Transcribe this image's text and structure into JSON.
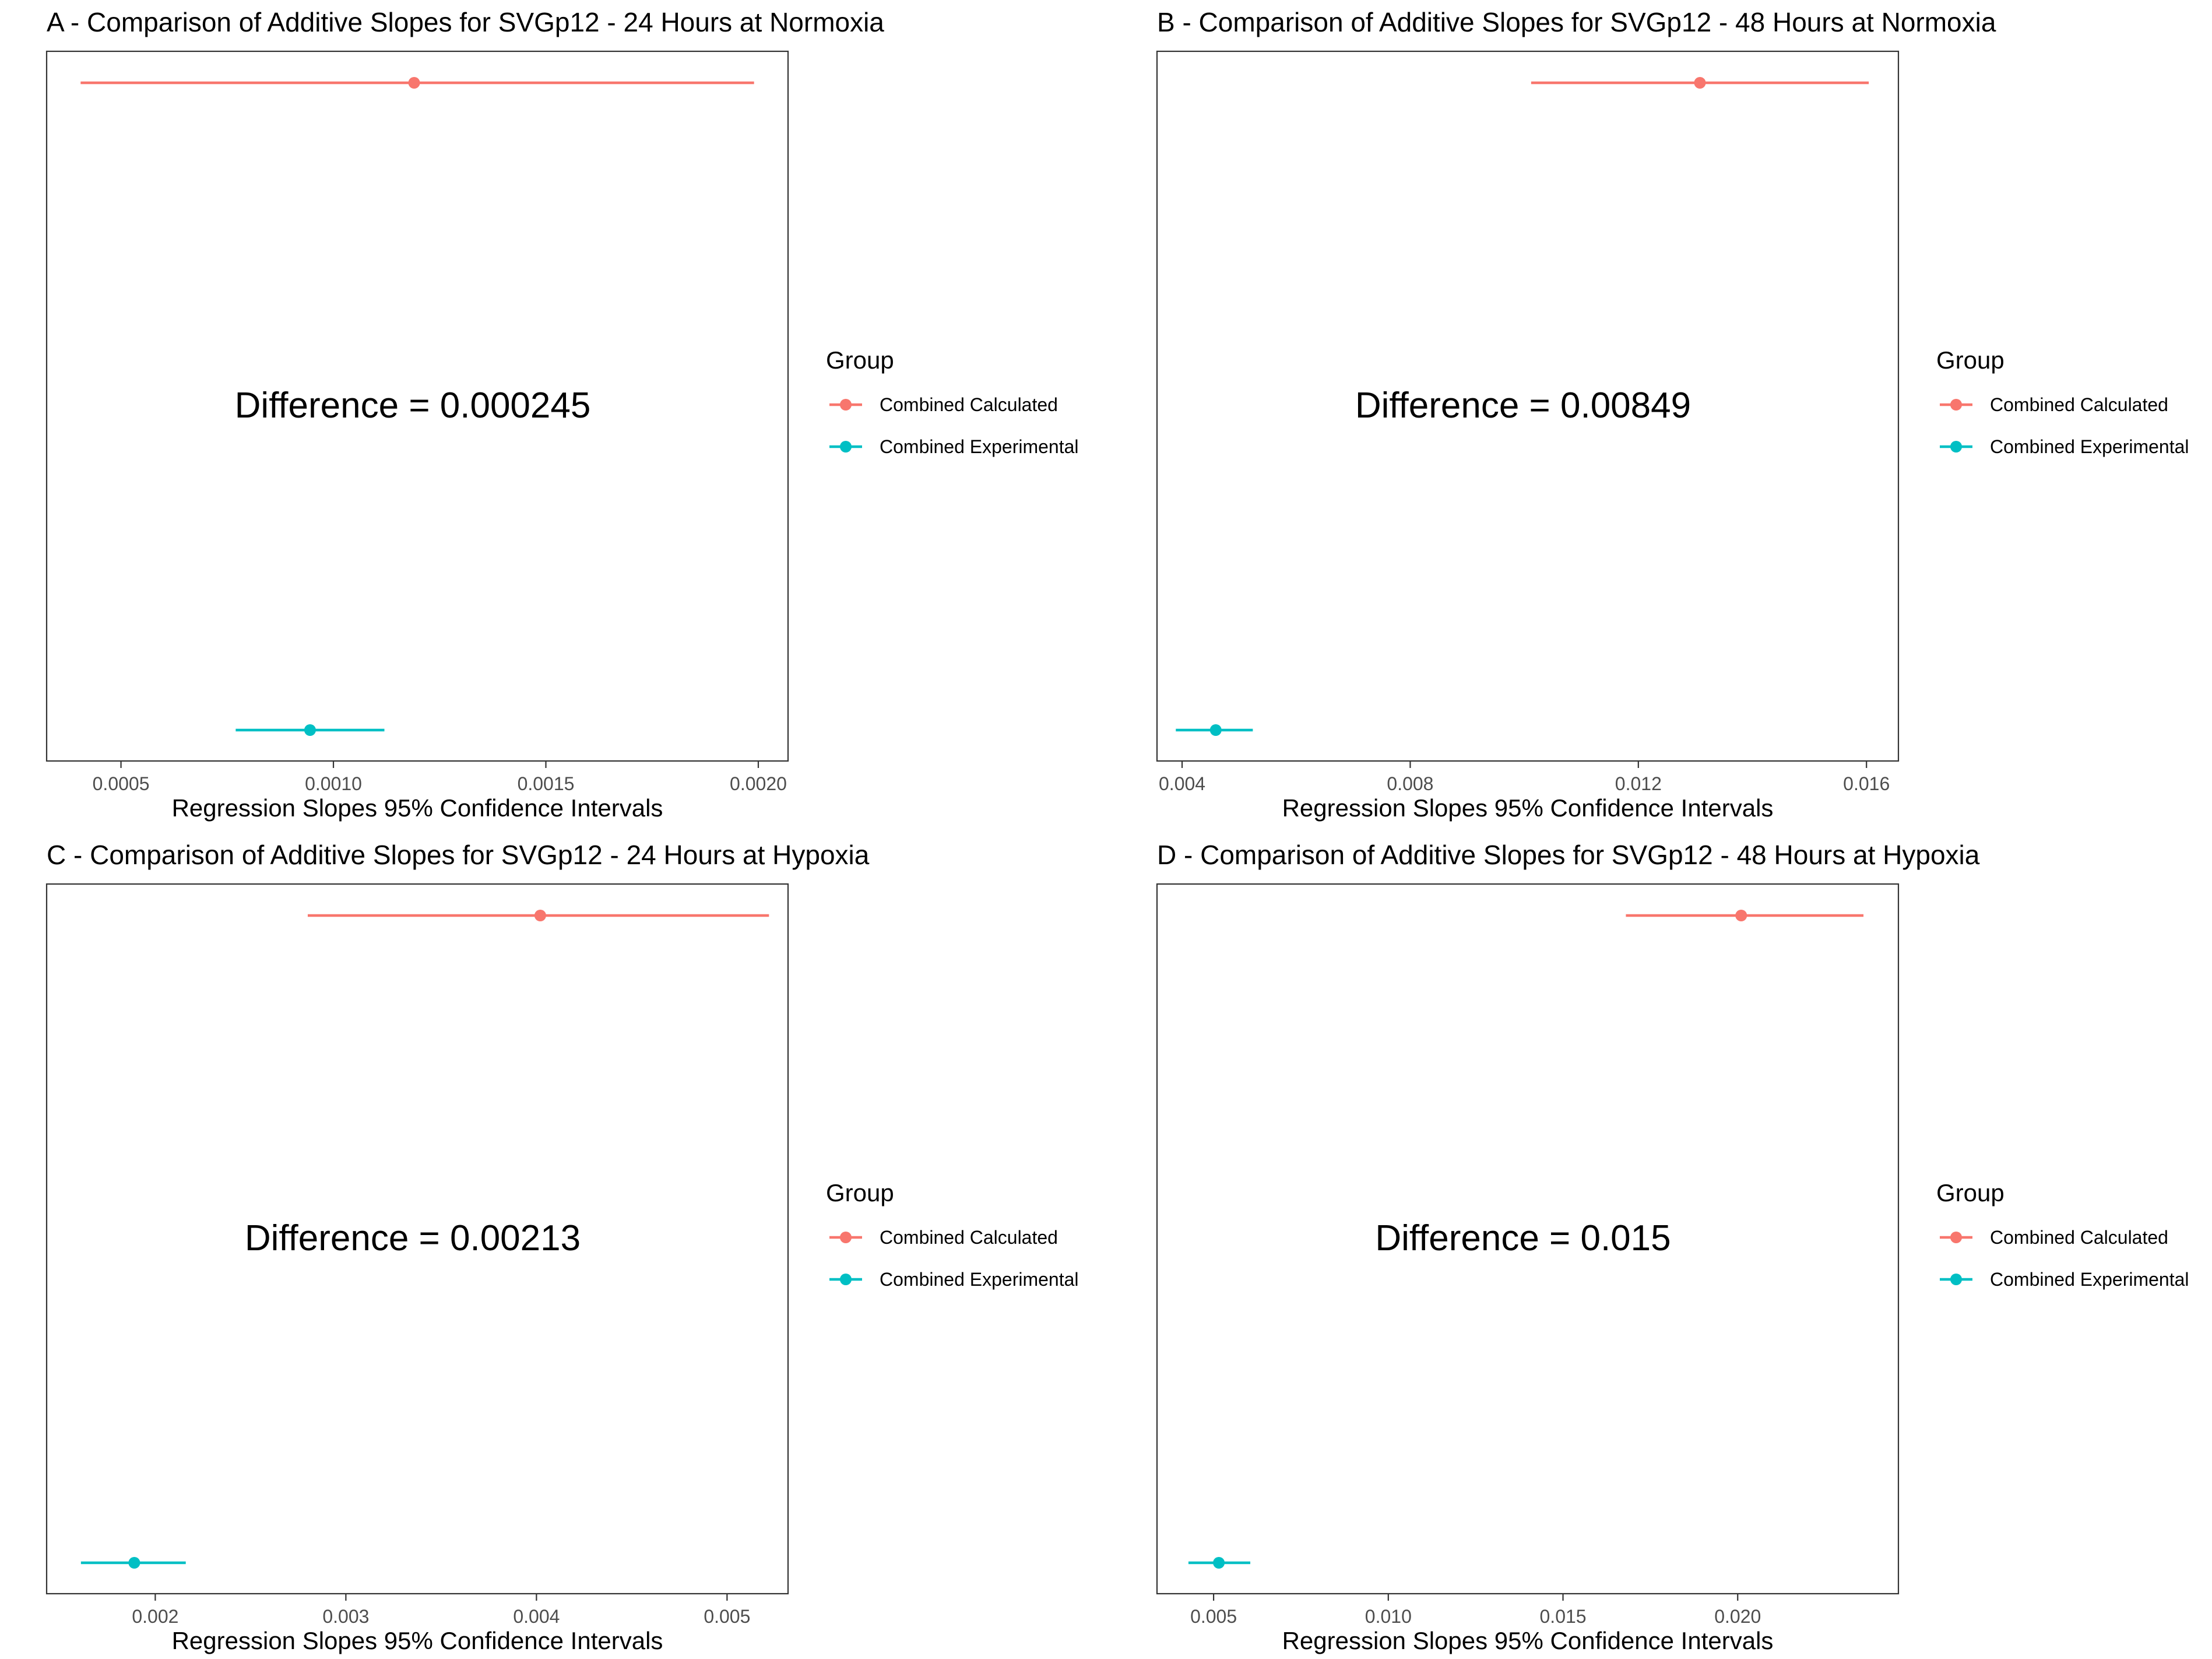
{
  "colors": {
    "calculated": "#F8766D",
    "experimental": "#00BFC4",
    "axis": "#333333",
    "text": "#000000",
    "tick_text": "#4D4D4D"
  },
  "legend": {
    "title": "Group",
    "items": [
      "Combined Calculated",
      "Combined Experimental"
    ]
  },
  "chart_data": [
    {
      "type": "scatter",
      "subtype": "point-range (confidence interval)",
      "title": "A - Comparison of Additive Slopes for SVGp12 - 24 Hours at Normoxia",
      "xlabel": "Regression Slopes 95% Confidence Intervals",
      "ylabel": "",
      "xlim": [
        0.000325,
        0.00207
      ],
      "xticks": [
        0.0005,
        0.001,
        0.0015,
        0.002
      ],
      "xtick_labels": [
        "0.0005",
        "0.0010",
        "0.0015",
        "0.0020"
      ],
      "annotation": "Difference = 0.000245",
      "grid": false,
      "legend_position": "right",
      "series": [
        {
          "name": "Combined Calculated",
          "estimate": 0.00119,
          "lower": 0.000405,
          "upper": 0.00199
        },
        {
          "name": "Combined Experimental",
          "estimate": 0.000945,
          "lower": 0.00077,
          "upper": 0.00112
        }
      ]
    },
    {
      "type": "scatter",
      "subtype": "point-range (confidence interval)",
      "title": "B - Comparison of Additive Slopes for SVGp12 - 48 Hours at Normoxia",
      "xlabel": "Regression Slopes 95% Confidence Intervals",
      "ylabel": "",
      "xlim": [
        0.00356,
        0.01656
      ],
      "xticks": [
        0.004,
        0.008,
        0.012,
        0.016
      ],
      "xtick_labels": [
        "0.004",
        "0.008",
        "0.012",
        "0.016"
      ],
      "annotation": "Difference = 0.00849",
      "grid": false,
      "legend_position": "right",
      "series": [
        {
          "name": "Combined Calculated",
          "estimate": 0.01308,
          "lower": 0.01012,
          "upper": 0.01604
        },
        {
          "name": "Combined Experimental",
          "estimate": 0.00459,
          "lower": 0.00389,
          "upper": 0.00524
        }
      ]
    },
    {
      "type": "scatter",
      "subtype": "point-range (confidence interval)",
      "title": "C - Comparison of Additive Slopes for SVGp12 - 24 Hours at Hypoxia",
      "xlabel": "Regression Slopes 95% Confidence Intervals",
      "ylabel": "",
      "xlim": [
        0.00143,
        0.00532
      ],
      "xticks": [
        0.002,
        0.003,
        0.004,
        0.005
      ],
      "xtick_labels": [
        "0.002",
        "0.003",
        "0.004",
        "0.005"
      ],
      "annotation": "Difference = 0.00213",
      "grid": false,
      "legend_position": "right",
      "series": [
        {
          "name": "Combined Calculated",
          "estimate": 0.00402,
          "lower": 0.0028,
          "upper": 0.00522
        },
        {
          "name": "Combined Experimental",
          "estimate": 0.00189,
          "lower": 0.00161,
          "upper": 0.00216
        }
      ]
    },
    {
      "type": "scatter",
      "subtype": "point-range (confidence interval)",
      "title": "D - Comparison of Additive Slopes for SVGp12 - 48 Hours at Hypoxia",
      "xlabel": "Regression Slopes 95% Confidence Intervals",
      "ylabel": "",
      "xlim": [
        0.00338,
        0.0246
      ],
      "xticks": [
        0.005,
        0.01,
        0.015,
        0.02
      ],
      "xtick_labels": [
        "0.005",
        "0.010",
        "0.015",
        "0.020"
      ],
      "annotation": "Difference = 0.015",
      "grid": false,
      "legend_position": "right",
      "series": [
        {
          "name": "Combined Calculated",
          "estimate": 0.0201,
          "lower": 0.0168,
          "upper": 0.0236
        },
        {
          "name": "Combined Experimental",
          "estimate": 0.00515,
          "lower": 0.00428,
          "upper": 0.00605
        }
      ]
    }
  ]
}
